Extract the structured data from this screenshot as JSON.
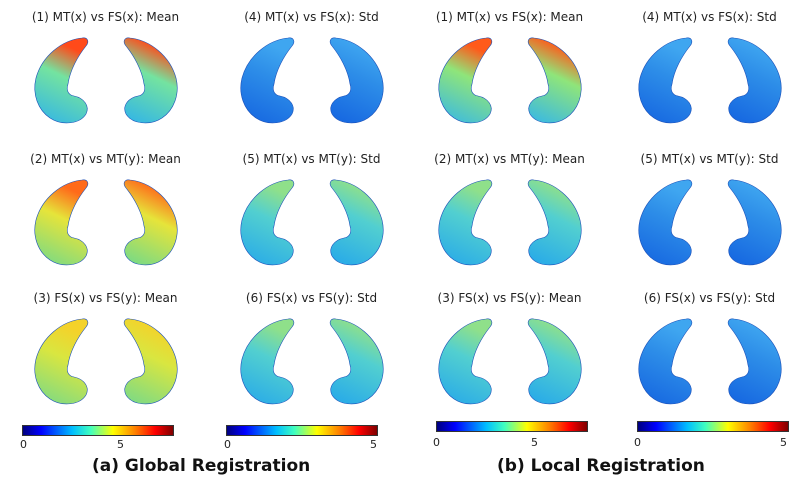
{
  "panels": [
    {
      "title": "(1) MT(x) vs FS(x): Mean",
      "scheme": "mt_fs_mean_g"
    },
    {
      "title": "(4) MT(x) vs FS(x): Std",
      "scheme": "std_low"
    },
    {
      "title": "(1) MT(x) vs FS(x): Mean",
      "scheme": "mt_fs_mean_l"
    },
    {
      "title": "(4) MT(x) vs FS(x): Std",
      "scheme": "std_low"
    },
    {
      "title": "(2) MT(x) vs MT(y): Mean",
      "scheme": "mt_mt_mean_g"
    },
    {
      "title": "(5) MT(x) vs MT(y): Std",
      "scheme": "mid_blue"
    },
    {
      "title": "(2) MT(x) vs MT(y): Mean",
      "scheme": "mid_blue"
    },
    {
      "title": "(5) MT(x) vs MT(y): Std",
      "scheme": "std_low"
    },
    {
      "title": "(3) FS(x) vs FS(y): Mean",
      "scheme": "fs_fs_mean_g"
    },
    {
      "title": "(6) FS(x) vs FS(y): Std",
      "scheme": "mid_blue"
    },
    {
      "title": "(3) FS(x) vs FS(y): Mean",
      "scheme": "mid_blue"
    },
    {
      "title": "(6) FS(x) vs FS(y): Std",
      "scheme": "std_low"
    }
  ],
  "colorbars": [
    {
      "ticks": [
        "0",
        "5"
      ]
    },
    {
      "ticks": [
        "0",
        "5"
      ]
    },
    {
      "ticks": [
        "0",
        "5"
      ]
    },
    {
      "ticks": [
        "0",
        "5"
      ]
    }
  ],
  "captions": {
    "global": "(a) Global Registration",
    "local": "(b) Local Registration"
  },
  "colors": {
    "mt_fs_mean_g": {
      "base": "#2fb3ea",
      "top": "#74e3a0",
      "tip": "#ff4a1a"
    },
    "std_low": {
      "base": "#1464e0",
      "top": "#2d8de8",
      "tip": "#3fa6f0"
    },
    "mt_fs_mean_l": {
      "base": "#34b6ea",
      "top": "#8fe57a",
      "tip": "#ff5a1a"
    },
    "mt_mt_mean_g": {
      "base": "#6fd98c",
      "top": "#e6e43a",
      "tip": "#ff6a1a"
    },
    "mid_blue": {
      "base": "#25a7ea",
      "top": "#52cfd0",
      "tip": "#8fe08a"
    },
    "fs_fs_mean_g": {
      "base": "#76d98a",
      "top": "#d9e640",
      "tip": "#f4d22a"
    }
  }
}
